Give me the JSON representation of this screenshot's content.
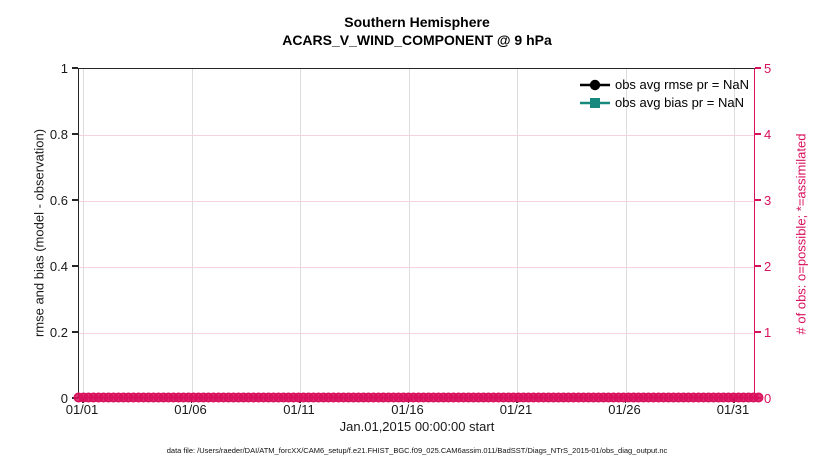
{
  "figure": {
    "title": "Southern Hemisphere",
    "subtitle": "ACARS_V_WIND_COMPONENT @ 9 hPa",
    "xlabel": "Jan.01,2015 00:00:00 start",
    "ylabel_left": "rmse and bias (model - observation)",
    "ylabel_right": "# of obs: o=possible; *=assimilated",
    "caption": "data file: /Users/raeder/DAI/ATM_forcXX/CAM6_setup/f.e21.FHIST_BGC.f09_025.CAM6assim.011/BadSST/Diags_NTrS_2015-01/obs_diag_output.nc"
  },
  "legend": {
    "items": [
      {
        "label": "obs avg rmse pr = NaN",
        "marker": "filled-circle",
        "color": "#000000"
      },
      {
        "label": "obs avg bias pr = NaN",
        "marker": "filled-square",
        "color": "#17897F"
      }
    ]
  },
  "chart_data": {
    "type": "line",
    "title": "Southern Hemisphere",
    "subtitle": "ACARS_V_WIND_COMPONENT @ 9 hPa",
    "xlabel": "Jan.01,2015 00:00:00 start",
    "ylabel_left": "rmse and bias (model - observation)",
    "ylabel_right": "# of obs: o=possible; *=assimilated",
    "x_tick_labels": [
      "01/01",
      "01/06",
      "01/11",
      "01/16",
      "01/21",
      "01/26",
      "01/31"
    ],
    "y_left_tick_labels": [
      "0",
      "0.2",
      "0.4",
      "0.6",
      "0.8",
      "1"
    ],
    "y_left_lim": [
      0,
      1
    ],
    "y_right_tick_labels": [
      "0",
      "1",
      "2",
      "3",
      "4",
      "5"
    ],
    "y_right_lim": [
      0,
      5
    ],
    "grid": true,
    "legend_position": "top-right-inside",
    "series": [
      {
        "name": "obs avg rmse pr = NaN",
        "color": "#000000",
        "marker": "circle",
        "values": [],
        "note": "all NaN, no line plotted"
      },
      {
        "name": "obs avg bias pr = NaN",
        "color": "#17897F",
        "marker": "square",
        "values": [],
        "note": "all NaN, no line plotted"
      },
      {
        "name": "# of possible obs (o markers)",
        "color": "#D9105C",
        "marker": "o",
        "axis": "right",
        "constant_value": 0,
        "x_span_days": [
          0,
          31
        ]
      }
    ],
    "colors": {
      "accent_pink": "#D9105C",
      "teal": "#17897F",
      "grid_gray": "#DCDCDC",
      "grid_pink": "#F5D3E0",
      "axis_dark": "#262626"
    }
  }
}
